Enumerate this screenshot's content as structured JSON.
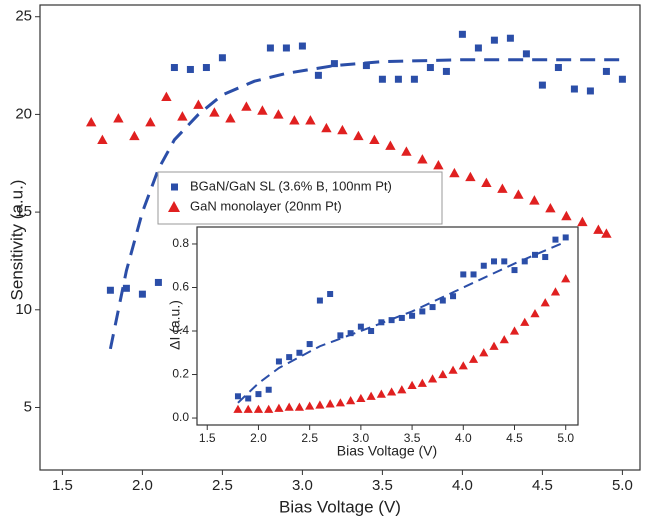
{
  "chart_data": [
    {
      "type": "scatter",
      "x_label": "Bias Voltage (V)",
      "y_label": "Sensitivity (a.u.)",
      "xlim": [
        1.36,
        5.11
      ],
      "ylim": [
        1.8,
        25.6
      ],
      "xticks": [
        1.5,
        {
          "value": 2,
          "label": "2.0"
        },
        2.5,
        {
          "value": 3,
          "label": "3.0"
        },
        3.5,
        {
          "value": 4,
          "label": "4.0"
        },
        4.5,
        {
          "value": 5,
          "label": "5.0"
        }
      ],
      "yticks": [
        5,
        10,
        15,
        20,
        25
      ],
      "legend": "center-left",
      "series": [
        {
          "name": "BGaN/GaN SL (3.6% B, 100nm Pt)",
          "color": "#2b4ea8",
          "marker": "square",
          "x": [
            1.8,
            1.9,
            2.0,
            2.1,
            2.2,
            2.3,
            2.4,
            2.5,
            2.8,
            2.9,
            3.0,
            3.1,
            3.2,
            3.4,
            3.5,
            3.6,
            3.7,
            3.8,
            3.9,
            4.0,
            4.1,
            4.2,
            4.3,
            4.4,
            4.5,
            4.6,
            4.7,
            4.8,
            4.9,
            5.0
          ],
          "values": [
            11.0,
            11.1,
            10.8,
            11.4,
            22.4,
            22.3,
            22.4,
            22.9,
            23.4,
            23.4,
            23.5,
            22.0,
            22.6,
            22.5,
            21.8,
            21.8,
            21.8,
            22.4,
            22.2,
            24.1,
            23.4,
            23.8,
            23.9,
            23.1,
            21.5,
            22.4,
            21.3,
            21.2,
            22.2,
            21.8
          ]
        },
        {
          "name": "GaN monolayer (20nm Pt)",
          "color": "#e02020",
          "marker": "triangle",
          "x": [
            1.68,
            1.75,
            1.85,
            1.95,
            2.05,
            2.15,
            2.25,
            2.35,
            2.45,
            2.55,
            2.65,
            2.75,
            2.85,
            2.95,
            3.05,
            3.15,
            3.25,
            3.35,
            3.45,
            3.55,
            3.65,
            3.75,
            3.85,
            3.95,
            4.05,
            4.15,
            4.25,
            4.35,
            4.45,
            4.55,
            4.65,
            4.75,
            4.85,
            4.9
          ],
          "values": [
            19.6,
            18.7,
            19.8,
            18.9,
            19.6,
            20.9,
            19.9,
            20.5,
            20.1,
            19.8,
            20.4,
            20.2,
            20.0,
            19.7,
            19.7,
            19.3,
            19.2,
            18.9,
            18.7,
            18.4,
            18.1,
            17.7,
            17.4,
            17.0,
            16.8,
            16.5,
            16.2,
            15.9,
            15.6,
            15.2,
            14.8,
            14.5,
            14.1,
            13.9
          ]
        },
        {
          "color": "#2b4ea8",
          "marker": "dashed-line",
          "x": [
            1.8,
            1.9,
            2.0,
            2.1,
            2.2,
            2.35,
            2.5,
            2.7,
            2.9,
            3.2,
            3.5,
            4.0,
            4.5,
            5.0
          ],
          "values": [
            8.0,
            12.0,
            15.0,
            17.2,
            18.7,
            20.0,
            21.0,
            21.7,
            22.1,
            22.5,
            22.7,
            22.8,
            22.8,
            22.8
          ]
        }
      ]
    },
    {
      "type": "scatter",
      "x_label": "Bias Voltage (V)",
      "y_label": "ΔI (a.u.)",
      "xlim": [
        1.4,
        5.12
      ],
      "ylim": [
        -0.032,
        0.878
      ],
      "xticks": [
        1.5,
        {
          "value": 2,
          "label": "2.0"
        },
        2.5,
        {
          "value": 3,
          "label": "3.0"
        },
        3.5,
        {
          "value": 4,
          "label": "4.0"
        },
        4.5,
        {
          "value": 5,
          "label": "5.0"
        }
      ],
      "yticks": [
        {
          "value": 0,
          "label": "0.0"
        },
        0.2,
        0.4,
        0.6,
        0.8
      ],
      "series": [
        {
          "color": "#2b4ea8",
          "marker": "square",
          "x": [
            1.8,
            1.9,
            2.0,
            2.1,
            2.2,
            2.3,
            2.4,
            2.5,
            2.6,
            2.7,
            2.8,
            2.9,
            3.0,
            3.1,
            3.2,
            3.3,
            3.4,
            3.5,
            3.6,
            3.7,
            3.8,
            3.9,
            4.0,
            4.1,
            4.2,
            4.3,
            4.4,
            4.5,
            4.6,
            4.7,
            4.8,
            4.9,
            5.0
          ],
          "values": [
            0.1,
            0.09,
            0.11,
            0.13,
            0.26,
            0.28,
            0.3,
            0.34,
            0.54,
            0.57,
            0.38,
            0.39,
            0.42,
            0.4,
            0.44,
            0.45,
            0.46,
            0.47,
            0.49,
            0.51,
            0.54,
            0.56,
            0.66,
            0.66,
            0.7,
            0.72,
            0.72,
            0.68,
            0.72,
            0.75,
            0.74,
            0.82,
            0.83
          ]
        },
        {
          "color": "#e02020",
          "marker": "triangle",
          "x": [
            1.8,
            1.9,
            2.0,
            2.1,
            2.2,
            2.3,
            2.4,
            2.5,
            2.6,
            2.7,
            2.8,
            2.9,
            3.0,
            3.1,
            3.2,
            3.3,
            3.4,
            3.5,
            3.6,
            3.7,
            3.8,
            3.9,
            4.0,
            4.1,
            4.2,
            4.3,
            4.4,
            4.5,
            4.6,
            4.7,
            4.8,
            4.9,
            5.0
          ],
          "values": [
            0.04,
            0.04,
            0.04,
            0.04,
            0.045,
            0.05,
            0.05,
            0.055,
            0.06,
            0.065,
            0.07,
            0.08,
            0.09,
            0.1,
            0.11,
            0.12,
            0.13,
            0.15,
            0.16,
            0.18,
            0.2,
            0.22,
            0.24,
            0.27,
            0.3,
            0.33,
            0.36,
            0.4,
            0.44,
            0.48,
            0.53,
            0.58,
            0.64
          ]
        },
        {
          "color": "#2b4ea8",
          "marker": "dashed-line",
          "x": [
            1.8,
            2.0,
            2.2,
            2.6,
            3.0,
            3.5,
            4.0,
            4.5,
            5.0
          ],
          "values": [
            0.07,
            0.16,
            0.23,
            0.33,
            0.4,
            0.49,
            0.6,
            0.71,
            0.81
          ]
        }
      ]
    }
  ]
}
